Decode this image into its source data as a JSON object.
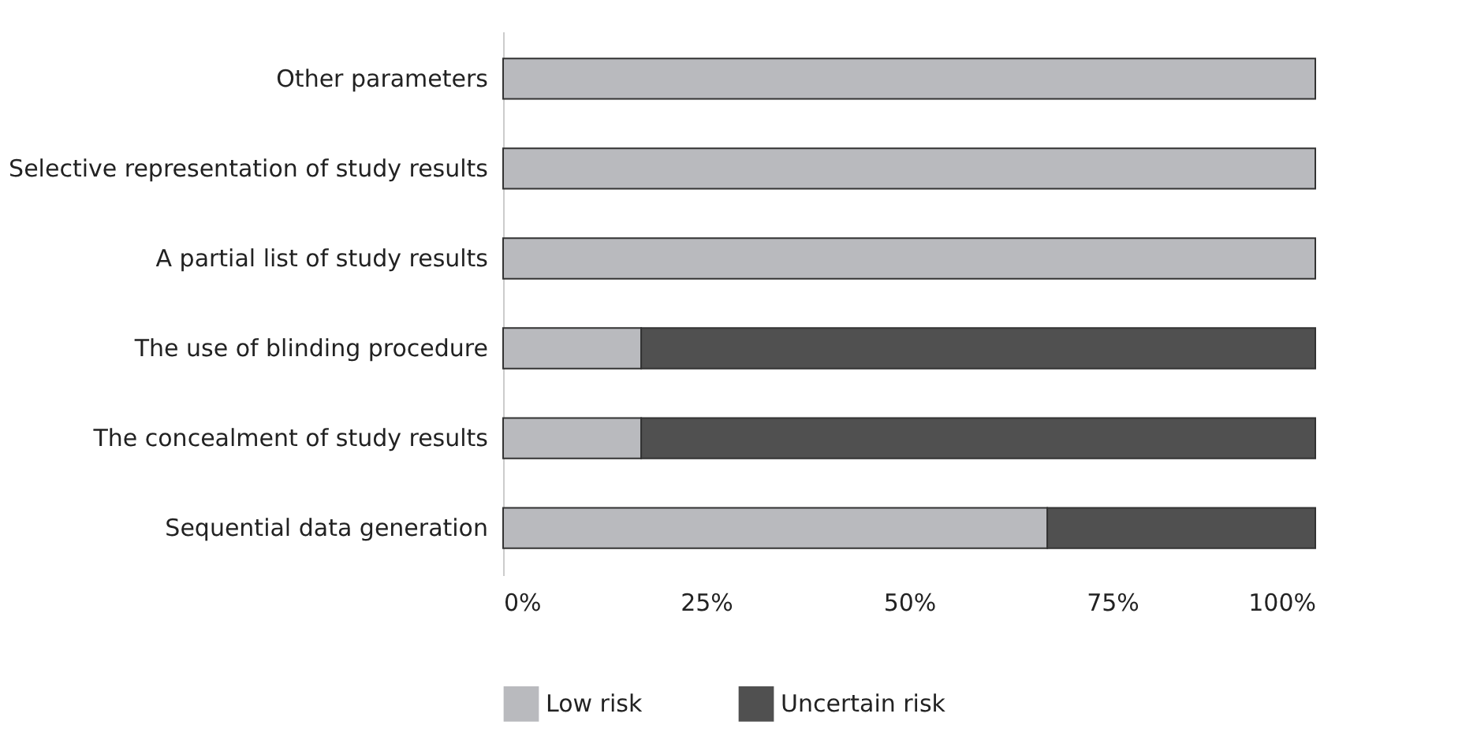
{
  "chart_data": {
    "type": "bar",
    "orientation": "horizontal",
    "stacked": true,
    "legend": "bottom",
    "grid": false,
    "categories": [
      "Other parameters",
      "Selective representation of study results",
      "A partial list of study results",
      "The use of blinding procedure",
      "The concealment of study results",
      "Sequential data generation"
    ],
    "series": [
      {
        "name": "Low risk",
        "color": "#b9babe",
        "values": [
          100,
          100,
          100,
          17,
          17,
          67
        ]
      },
      {
        "name": "Uncertain risk",
        "color": "#505050",
        "values": [
          null,
          null,
          null,
          83,
          83,
          33
        ]
      }
    ],
    "xlim": [
      0,
      100
    ],
    "xticks": [
      {
        "value": 0,
        "label": "0%"
      },
      {
        "value": 25,
        "label": "25%"
      },
      {
        "value": 50,
        "label": "50%"
      },
      {
        "value": 75,
        "label": "75%"
      },
      {
        "value": 100,
        "label": "100%"
      }
    ]
  }
}
